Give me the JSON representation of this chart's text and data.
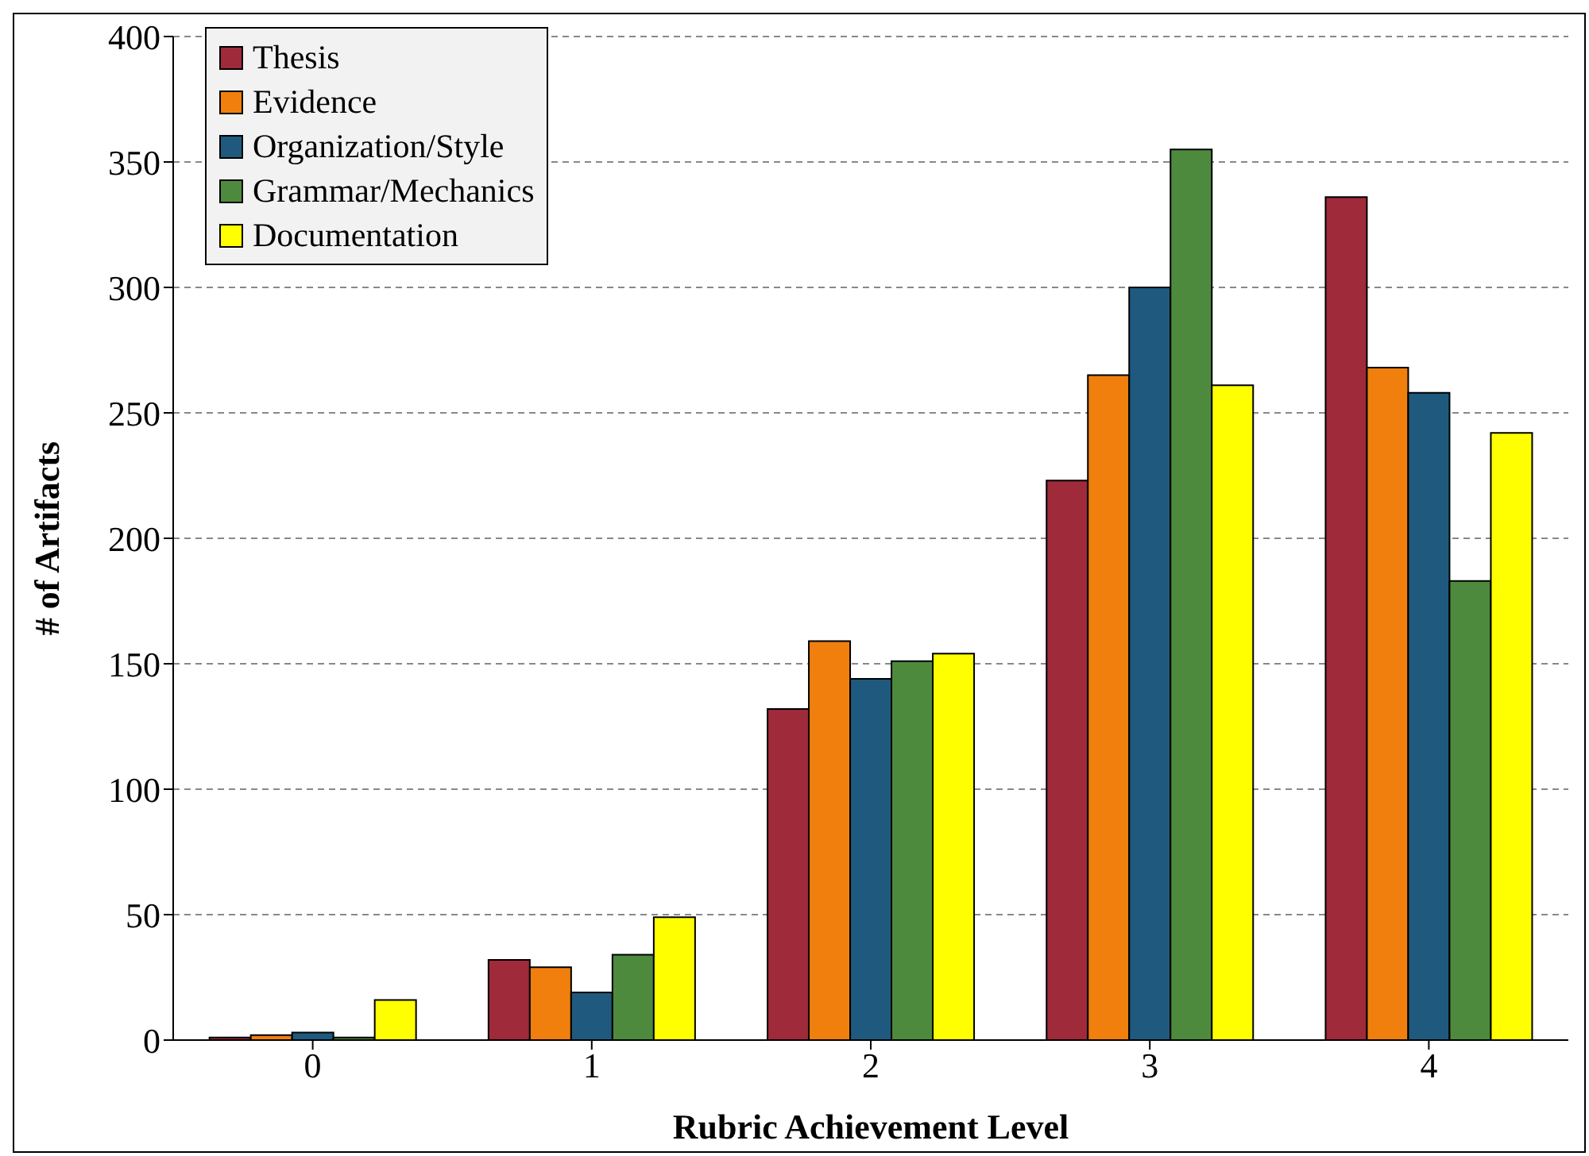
{
  "chart_data": {
    "type": "bar",
    "xlabel": "Rubric Achievement Level",
    "ylabel": "# of Artifacts",
    "categories": [
      "0",
      "1",
      "2",
      "3",
      "4"
    ],
    "series": [
      {
        "name": "Thesis",
        "color": "#9e2a3a",
        "values": [
          1,
          32,
          132,
          223,
          336
        ]
      },
      {
        "name": "Evidence",
        "color": "#f07f0e",
        "values": [
          2,
          29,
          159,
          265,
          268
        ]
      },
      {
        "name": "Organization/Style",
        "color": "#1f5a7e",
        "values": [
          3,
          19,
          144,
          300,
          258
        ]
      },
      {
        "name": "Grammar/Mechanics",
        "color": "#4e8a3e",
        "values": [
          1,
          34,
          151,
          355,
          183
        ]
      },
      {
        "name": "Documentation",
        "color": "#ffff00",
        "values": [
          16,
          49,
          154,
          261,
          242
        ]
      }
    ],
    "ylim": [
      0,
      400
    ],
    "yticks": [
      0,
      50,
      100,
      150,
      200,
      250,
      300,
      350,
      400
    ],
    "grid": "y",
    "legend": "top left"
  }
}
